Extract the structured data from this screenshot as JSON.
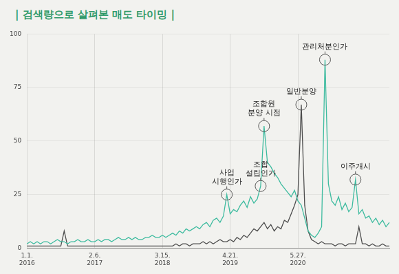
{
  "chart_data": {
    "type": "line",
    "title": "| 검색량으로 살펴본 매도 타이밍 |",
    "categories": [
      "1.1. 2016",
      null,
      null,
      null,
      null,
      null,
      null,
      null,
      null,
      null,
      null,
      null,
      null,
      null,
      null,
      null,
      null,
      null,
      null,
      null,
      "2.6. 2017",
      null,
      null,
      null,
      null,
      null,
      null,
      null,
      null,
      null,
      null,
      null,
      null,
      null,
      null,
      null,
      null,
      null,
      null,
      null,
      "3.15. 2018",
      null,
      null,
      null,
      null,
      null,
      null,
      null,
      null,
      null,
      null,
      null,
      null,
      null,
      null,
      null,
      null,
      null,
      null,
      null,
      "4.21. 2019",
      null,
      null,
      null,
      null,
      null,
      null,
      null,
      null,
      null,
      null,
      null,
      null,
      null,
      null,
      null,
      null,
      null,
      null,
      null,
      "5.27. 2020",
      null,
      null,
      null,
      null,
      null,
      null,
      null,
      null,
      null,
      null,
      null,
      null,
      null,
      null,
      null,
      null,
      null,
      null,
      null,
      null,
      null,
      null,
      null,
      null,
      null,
      null,
      null
    ],
    "series": [
      {
        "color": "#3dbb9f",
        "values": [
          2,
          3,
          2,
          3,
          2,
          3,
          3,
          2,
          3,
          4,
          3,
          3,
          2,
          3,
          3,
          4,
          3,
          3,
          4,
          3,
          3,
          4,
          3,
          4,
          4,
          3,
          4,
          5,
          4,
          4,
          5,
          4,
          5,
          4,
          4,
          5,
          5,
          6,
          5,
          5,
          6,
          5,
          6,
          7,
          6,
          8,
          7,
          9,
          8,
          9,
          10,
          9,
          11,
          12,
          10,
          13,
          14,
          12,
          15,
          25,
          16,
          18,
          17,
          20,
          22,
          19,
          24,
          21,
          23,
          29,
          57,
          40,
          38,
          35,
          33,
          30,
          28,
          26,
          24,
          27,
          22,
          20,
          14,
          8,
          6,
          5,
          7,
          10,
          88,
          30,
          22,
          20,
          24,
          18,
          21,
          17,
          19,
          32,
          16,
          18,
          14,
          15,
          12,
          14,
          11,
          13,
          10,
          12
        ]
      },
      {
        "color": "#4d4d4d",
        "values": [
          1,
          1,
          1,
          1,
          1,
          1,
          1,
          1,
          1,
          1,
          1,
          8,
          1,
          1,
          1,
          1,
          1,
          1,
          1,
          1,
          1,
          1,
          1,
          1,
          1,
          1,
          1,
          1,
          1,
          1,
          1,
          1,
          1,
          1,
          1,
          1,
          1,
          1,
          1,
          1,
          1,
          1,
          1,
          1,
          2,
          1,
          2,
          2,
          1,
          2,
          2,
          2,
          3,
          2,
          3,
          2,
          3,
          4,
          3,
          3,
          4,
          3,
          5,
          4,
          6,
          5,
          7,
          9,
          8,
          10,
          12,
          9,
          11,
          8,
          10,
          9,
          13,
          12,
          16,
          20,
          25,
          67,
          20,
          8,
          4,
          3,
          2,
          3,
          2,
          2,
          2,
          1,
          2,
          2,
          1,
          2,
          2,
          2,
          10,
          2,
          2,
          1,
          2,
          1,
          1,
          2,
          1,
          1
        ]
      }
    ],
    "ylim": [
      0,
      100
    ],
    "yticks": [
      0,
      25,
      50,
      75,
      100
    ],
    "grid": true,
    "annotations": [
      {
        "text": [
          "사업",
          "시행인가"
        ],
        "x": 59,
        "y": 25
      },
      {
        "text": [
          "조합",
          "설립인가"
        ],
        "x": 69,
        "y": 29
      },
      {
        "text": [
          "조합원",
          "분양 시점"
        ],
        "x": 70,
        "y": 57
      },
      {
        "text": [
          "일반분양"
        ],
        "x": 81,
        "y": 67
      },
      {
        "text": [
          "관리처분인가"
        ],
        "x": 88,
        "y": 88
      },
      {
        "text": [
          "이주개시"
        ],
        "x": 97,
        "y": 32
      }
    ]
  }
}
